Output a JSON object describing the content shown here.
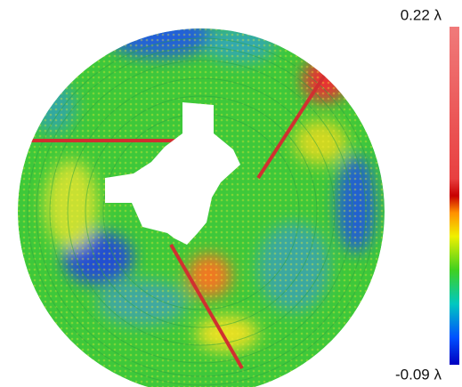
{
  "colorbar": {
    "max_label": "0.22 λ",
    "min_label": "-0.09 λ"
  }
}
